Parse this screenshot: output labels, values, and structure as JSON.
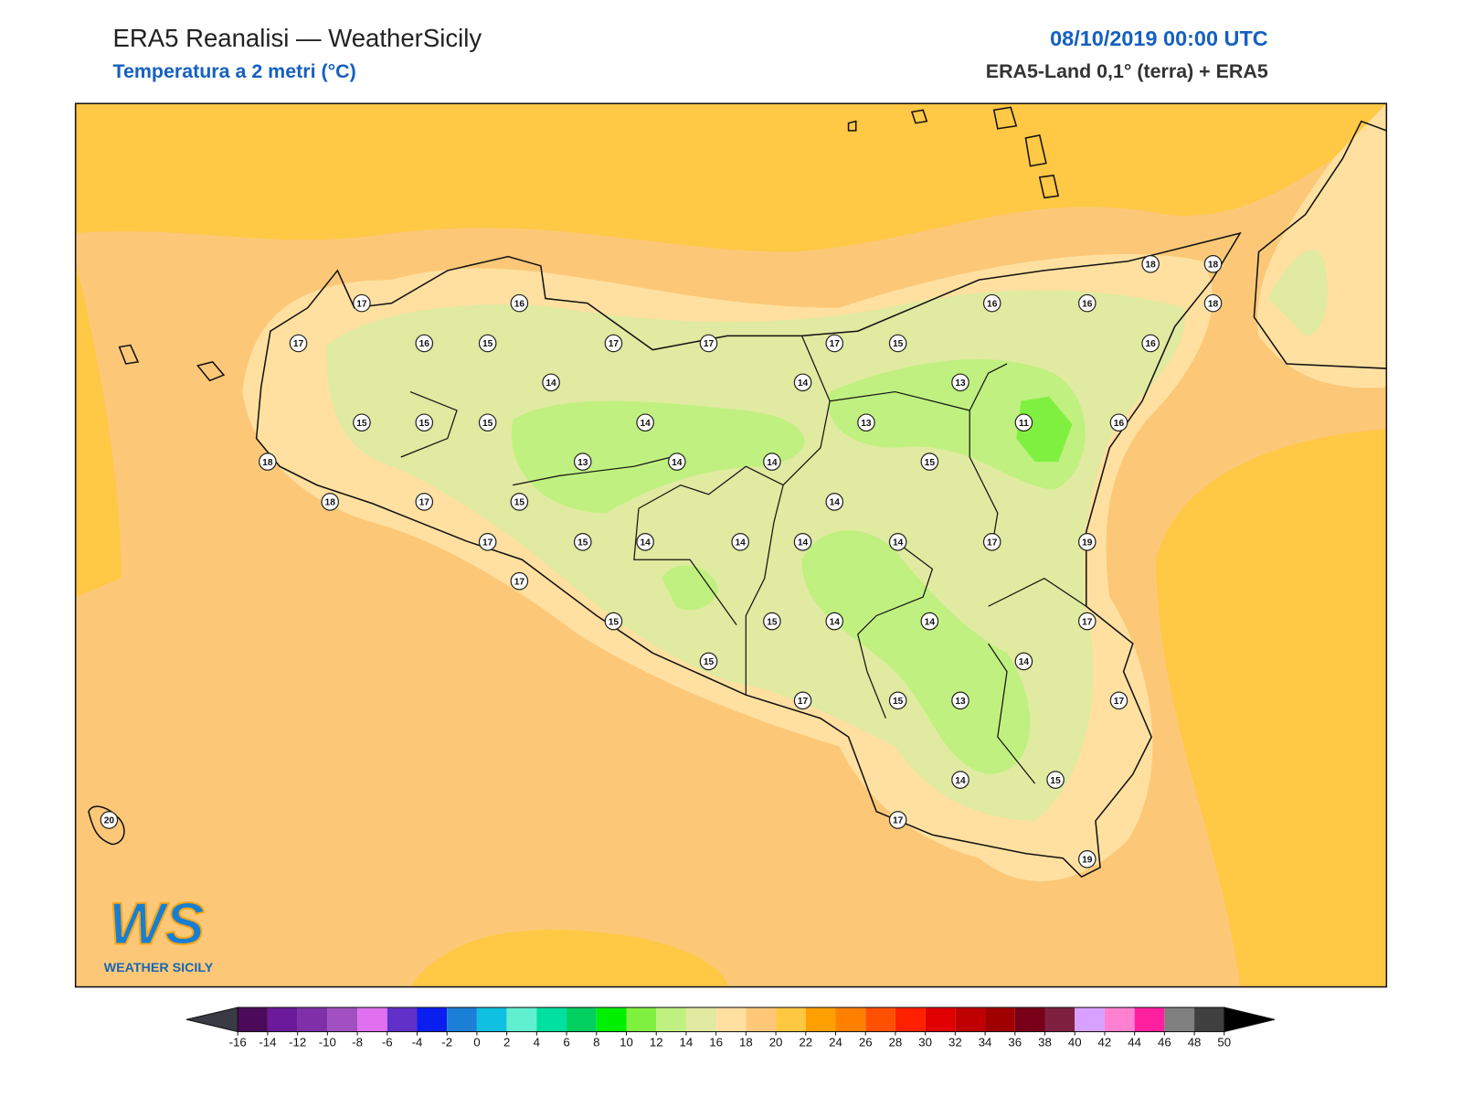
{
  "header": {
    "title": "ERA5 Reanalisi — WeatherSicily",
    "subtitle": "Temperatura a 2 metri (°C)",
    "datetime": "08/10/2019 00:00 UTC",
    "source": "ERA5-Land 0,1° (terra) + ERA5"
  },
  "map": {
    "station_values": [
      17,
      16,
      17,
      16,
      15,
      17,
      17,
      17,
      15,
      16,
      16,
      18,
      18,
      18,
      16,
      14,
      14,
      13,
      15,
      15,
      15,
      14,
      13,
      11,
      16,
      18,
      13,
      14,
      14,
      15,
      18,
      17,
      15,
      14,
      17,
      15,
      14,
      14,
      14,
      14,
      17,
      19,
      17,
      15,
      15,
      14,
      14,
      17,
      15,
      14,
      17,
      15,
      13,
      17,
      14,
      15,
      17,
      19,
      20
    ]
  },
  "colorbar": {
    "ticks": [
      -16,
      -14,
      -12,
      -10,
      -8,
      -6,
      -4,
      -2,
      0,
      2,
      4,
      6,
      8,
      10,
      12,
      14,
      16,
      18,
      20,
      22,
      24,
      26,
      28,
      30,
      32,
      34,
      36,
      38,
      40,
      42,
      44,
      46,
      48,
      50
    ],
    "colors": [
      "#4b0a5a",
      "#6a1a9a",
      "#7f30a8",
      "#a050c0",
      "#e070f0",
      "#6030c8",
      "#0a1ef0",
      "#1c7fd8",
      "#10c0e0",
      "#60f0d0",
      "#00e0a0",
      "#00d060",
      "#00f000",
      "#80f040",
      "#c0f080",
      "#e0eaa0",
      "#ffe0a0",
      "#ffc878",
      "#ffc840",
      "#ffa000",
      "#ff8000",
      "#ff5000",
      "#ff2000",
      "#e00000",
      "#c00000",
      "#a00000",
      "#780018",
      "#802040",
      "#d8a0ff",
      "#ff80d0",
      "#ff20a0",
      "#808080",
      "#404040"
    ],
    "under_color": "#3a3a44",
    "over_color": "#000000"
  },
  "logo": {
    "mark": "WS",
    "text": "WEATHER SICILY"
  }
}
